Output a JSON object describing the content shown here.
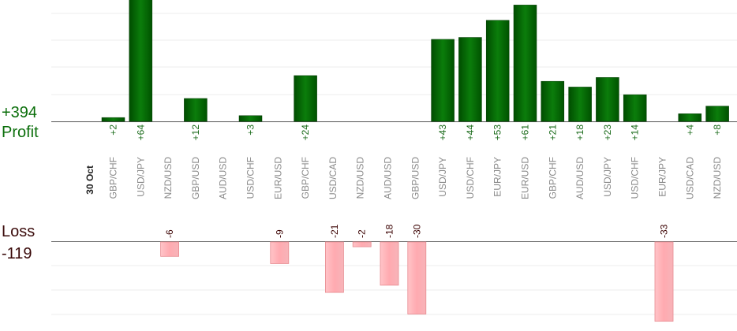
{
  "chart_data": {
    "type": "bar",
    "date_label": "30 Oct",
    "categories": [
      "GBP/CHF",
      "USD/JPY",
      "NZD/USD",
      "GBP/USD",
      "AUD/USD",
      "USD/CHF",
      "EUR/USD",
      "GBP/CHF",
      "USD/CAD",
      "NZD/USD",
      "AUD/USD",
      "GBP/USD",
      "USD/JPY",
      "USD/CHF",
      "EUR/JPY",
      "EUR/USD",
      "GBP/CHF",
      "AUD/USD",
      "USD/JPY",
      "USD/CHF",
      "EUR/JPY",
      "USD/CAD",
      "NZD/USD"
    ],
    "profit": {
      "label": "Profit",
      "total": "+394",
      "values": [
        2,
        64,
        0,
        12,
        0,
        3,
        0,
        24,
        0,
        0,
        0,
        0,
        43,
        44,
        53,
        61,
        21,
        18,
        23,
        14,
        0,
        4,
        8
      ],
      "value_labels": [
        "+2",
        "+64",
        "",
        "+12",
        "",
        "+3",
        "",
        "+24",
        "",
        "",
        "",
        "",
        "+43",
        "+44",
        "+53",
        "+61",
        "+21",
        "+18",
        "+23",
        "+14",
        "",
        "+4",
        "+8"
      ],
      "color_dark": "#005a00",
      "color_light": "#0c8a0c",
      "label_color": "#1a6b1a"
    },
    "loss": {
      "label": "Loss",
      "total": "-119",
      "values": [
        0,
        0,
        -6,
        0,
        0,
        0,
        -9,
        0,
        -21,
        -2,
        -18,
        -30,
        0,
        0,
        0,
        0,
        0,
        0,
        0,
        0,
        -33,
        0,
        0
      ],
      "value_labels": [
        "",
        "",
        "-6",
        "",
        "",
        "",
        "-9",
        "",
        "-21",
        "-2",
        "-18",
        "-30",
        "",
        "",
        "",
        "",
        "",
        "",
        "",
        "",
        "-33",
        "",
        ""
      ],
      "color_fill": "#ffb6bb",
      "color_edge": "#e88a90",
      "label_color": "#3a0000"
    },
    "grid": true
  }
}
